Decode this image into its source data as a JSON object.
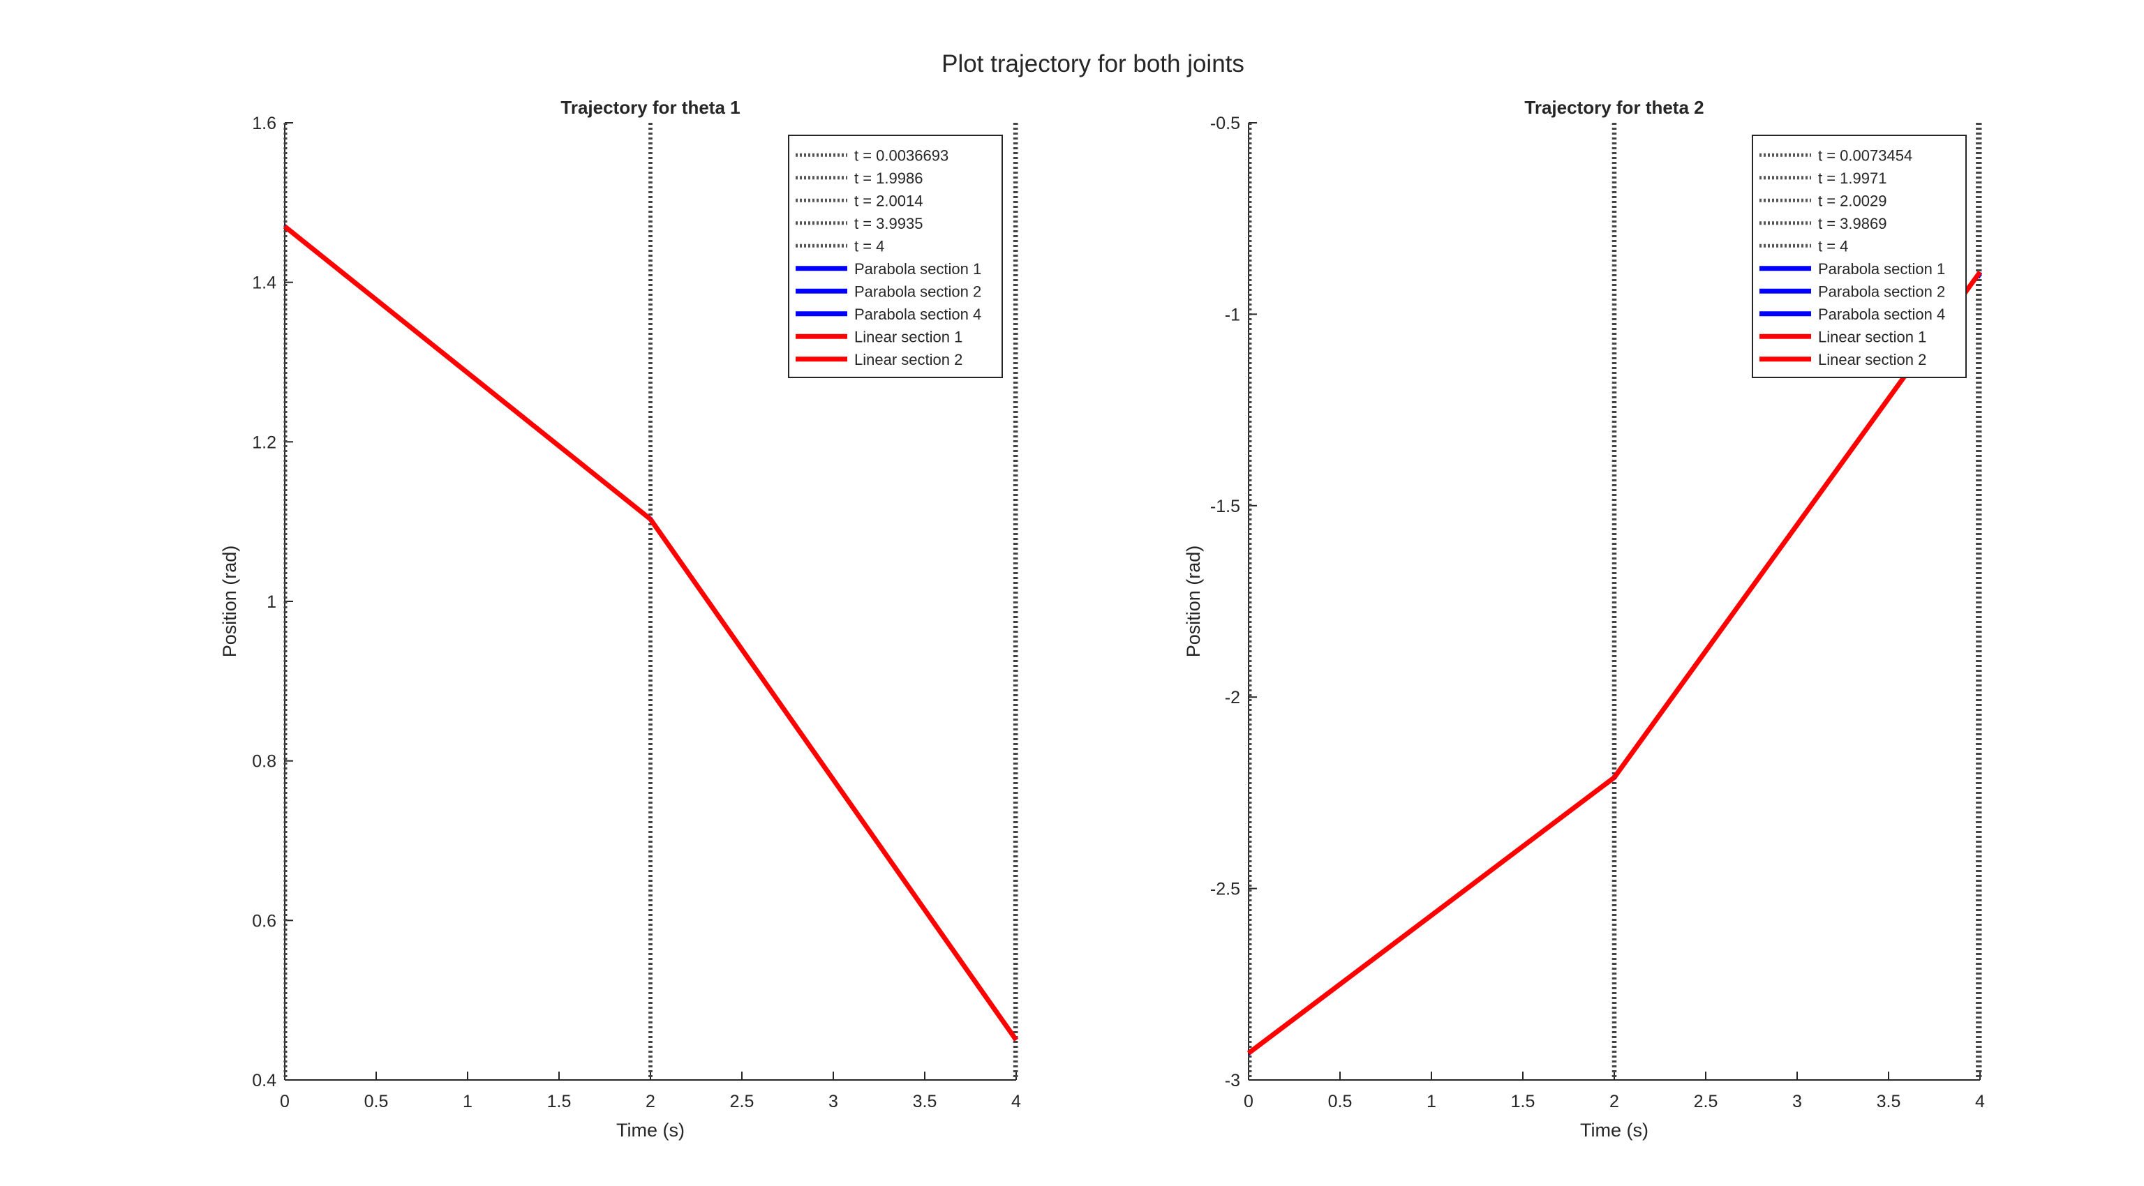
{
  "figure": {
    "suptitle": "Plot trajectory for both joints"
  },
  "chart_data": [
    {
      "type": "line",
      "title": "Trajectory for theta 1",
      "xlabel": "Time (s)",
      "ylabel": "Position (rad)",
      "xlim": [
        0,
        4
      ],
      "ylim": [
        0.4,
        1.6
      ],
      "xticks": [
        "0",
        "0.5",
        "1",
        "1.5",
        "2",
        "2.5",
        "3",
        "3.5",
        "4"
      ],
      "xtick_values": [
        0,
        0.5,
        1,
        1.5,
        2,
        2.5,
        3,
        3.5,
        4
      ],
      "yticks": [
        "0.4",
        "0.6",
        "0.8",
        "1",
        "1.2",
        "1.4",
        "1.6"
      ],
      "ytick_values": [
        0.4,
        0.6,
        0.8,
        1.0,
        1.2,
        1.4,
        1.6
      ],
      "legend_position": "top-right",
      "vlines": [
        {
          "name": "t = 0.0036693",
          "x": 0.0036693,
          "color": "#555555"
        },
        {
          "name": "t = 1.9986",
          "x": 1.9986,
          "color": "#555555"
        },
        {
          "name": "t = 2.0014",
          "x": 2.0014,
          "color": "#555555"
        },
        {
          "name": "t = 3.9935",
          "x": 3.9935,
          "color": "#555555"
        },
        {
          "name": "t = 4",
          "x": 4,
          "color": "#555555"
        }
      ],
      "series": [
        {
          "name": "Parabola section 1",
          "color": "#0000ff",
          "x": [
            0,
            0.0036693
          ],
          "y": [
            1.47,
            1.4697
          ]
        },
        {
          "name": "Parabola section 2",
          "color": "#0000ff",
          "x": [
            1.9986,
            2.0014
          ],
          "y": [
            1.1036,
            1.1027
          ]
        },
        {
          "name": "Parabola section 4",
          "color": "#0000ff",
          "x": [
            3.9935,
            4
          ],
          "y": [
            0.4522,
            0.45
          ]
        },
        {
          "name": "Linear section 1",
          "color": "#ff0000",
          "x": [
            0,
            2
          ],
          "y": [
            1.47,
            1.103
          ]
        },
        {
          "name": "Linear section 2",
          "color": "#ff0000",
          "x": [
            2,
            4
          ],
          "y": [
            1.103,
            0.45
          ]
        }
      ]
    },
    {
      "type": "line",
      "title": "Trajectory for theta 2",
      "xlabel": "Time (s)",
      "ylabel": "Position (rad)",
      "xlim": [
        0,
        4
      ],
      "ylim": [
        -3,
        -0.5
      ],
      "xticks": [
        "0",
        "0.5",
        "1",
        "1.5",
        "2",
        "2.5",
        "3",
        "3.5",
        "4"
      ],
      "xtick_values": [
        0,
        0.5,
        1,
        1.5,
        2,
        2.5,
        3,
        3.5,
        4
      ],
      "yticks": [
        "-3",
        "-2.5",
        "-2",
        "-1.5",
        "-1",
        "-0.5"
      ],
      "ytick_values": [
        -3,
        -2.5,
        -2,
        -1.5,
        -1,
        -0.5
      ],
      "legend_position": "top-right",
      "vlines": [
        {
          "name": "t = 0.0073454",
          "x": 0.0073454,
          "color": "#555555"
        },
        {
          "name": "t = 1.9971",
          "x": 1.9971,
          "color": "#555555"
        },
        {
          "name": "t = 2.0029",
          "x": 2.0029,
          "color": "#555555"
        },
        {
          "name": "t = 3.9869",
          "x": 3.9869,
          "color": "#555555"
        },
        {
          "name": "t = 4",
          "x": 4,
          "color": "#555555"
        }
      ],
      "series": [
        {
          "name": "Parabola section 1",
          "color": "#0000ff",
          "x": [
            0,
            0.0073454
          ],
          "y": [
            -2.93,
            -2.9288
          ]
        },
        {
          "name": "Parabola section 2",
          "color": "#0000ff",
          "x": [
            1.9971,
            2.0029
          ],
          "y": [
            -2.2105,
            -2.2073
          ]
        },
        {
          "name": "Parabola section 4",
          "color": "#0000ff",
          "x": [
            3.9869,
            4
          ],
          "y": [
            -0.9043,
            -0.89
          ]
        },
        {
          "name": "Linear section 1",
          "color": "#ff0000",
          "x": [
            0,
            2
          ],
          "y": [
            -2.93,
            -2.21
          ]
        },
        {
          "name": "Linear section 2",
          "color": "#ff0000",
          "x": [
            2,
            4
          ],
          "y": [
            -2.21,
            -0.89
          ]
        }
      ]
    }
  ]
}
